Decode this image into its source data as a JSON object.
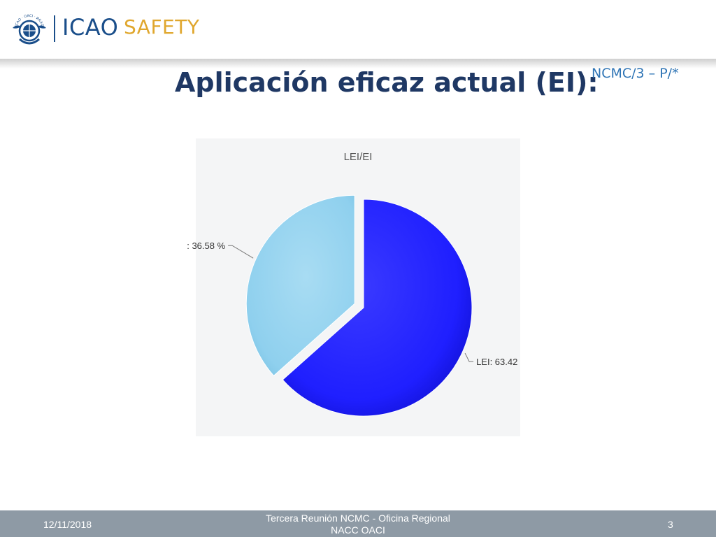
{
  "header": {
    "logo_text": "ICAO",
    "tagline": "SAFETY",
    "emblem_text": "ICAO · OACI · ИКАО",
    "emblem_icon": "icao-emblem-icon"
  },
  "slide": {
    "title": "Aplicación eficaz actual (EI):",
    "code": "NCMC/3 – P/*"
  },
  "colors": {
    "title": "#1f3864",
    "footer": "#8e9aa5",
    "lei_slice": "#1f1fff",
    "ei_slice": "#8fd0ee"
  },
  "chart_data": {
    "type": "pie",
    "title": "LEI/EI",
    "slices": [
      {
        "label": "LEI: 63.42",
        "value": 63.42,
        "color": "#1f1fff",
        "exploded": false
      },
      {
        "label": ": 36.58 %",
        "value": 36.58,
        "color": "#8fd0ee",
        "exploded": true
      }
    ]
  },
  "footer": {
    "date": "12/11/2018",
    "center_line1": "Tercera Reunión NCMC - Oficina Regional",
    "center_line2": "NACC OACI",
    "page": "3"
  }
}
